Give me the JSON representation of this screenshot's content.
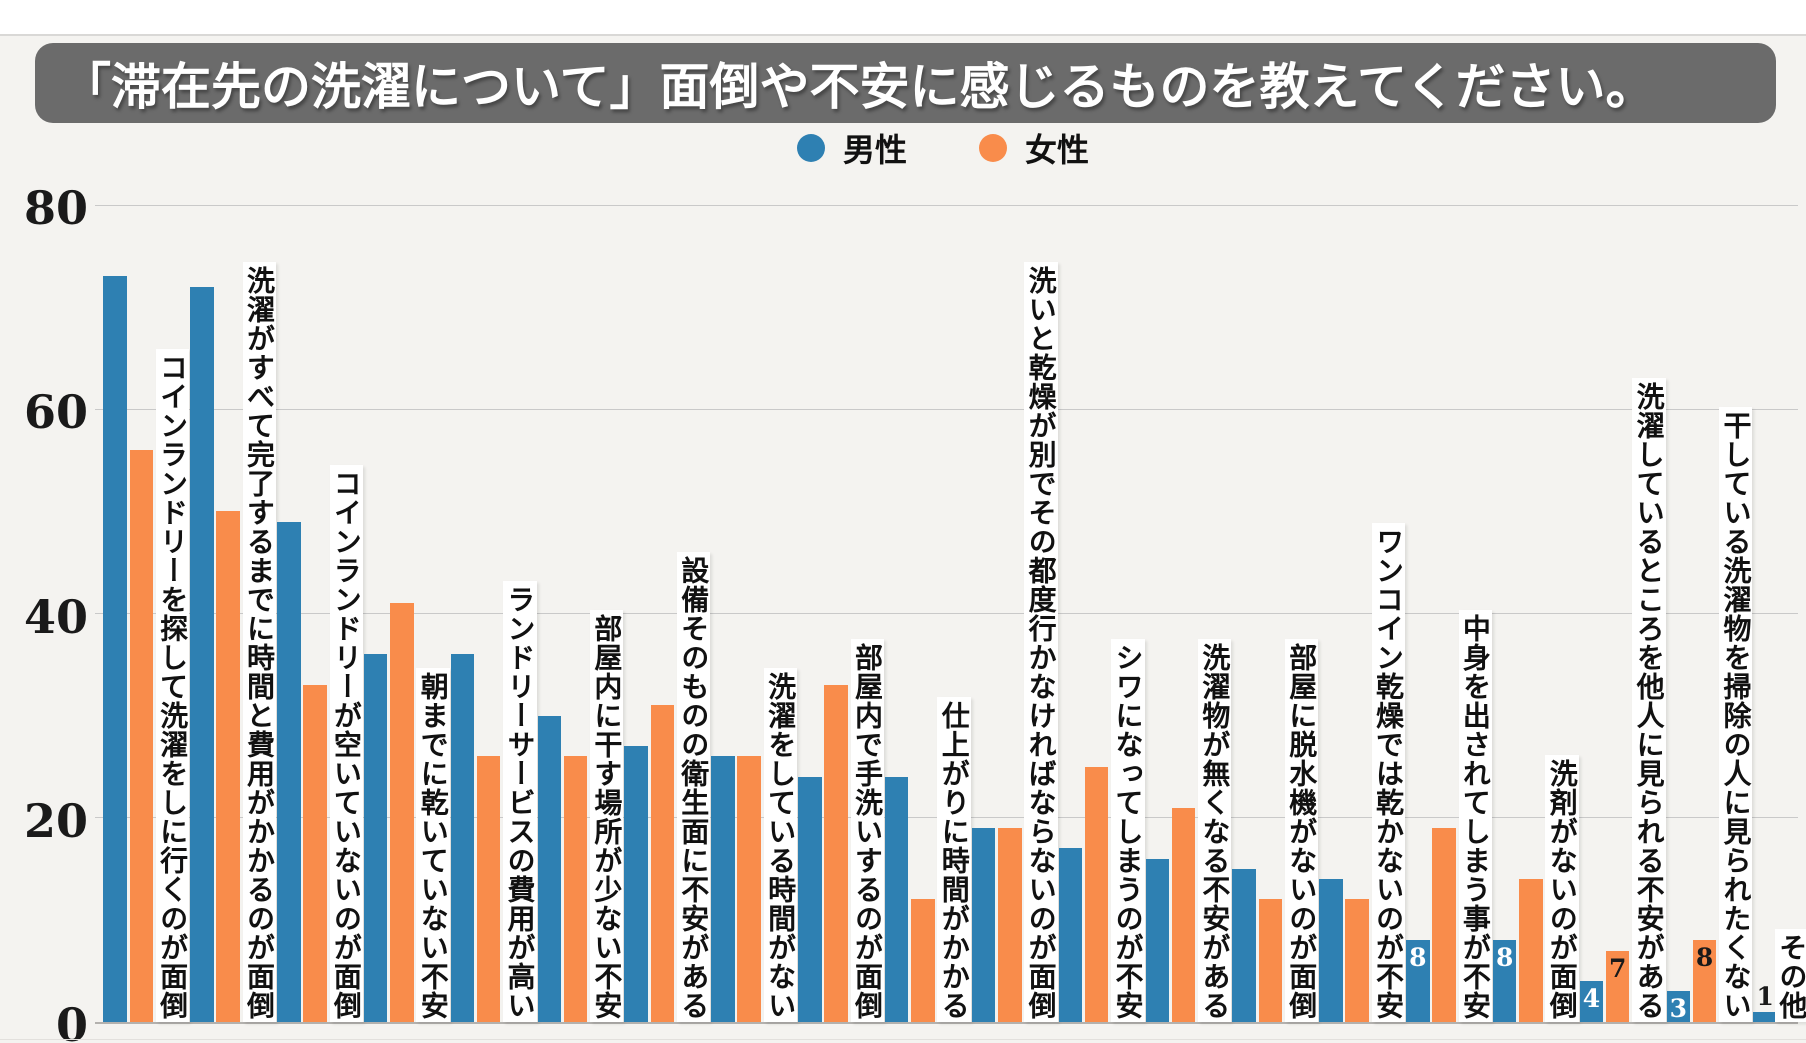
{
  "page": {
    "background": "#f4f3f0",
    "top_band": "#ffffff"
  },
  "title": {
    "text": "「滞在先の洗濯について」面倒や不安に感じるものを教えてください。",
    "bar_color": "#6b6b6b",
    "text_color": "#ffffff"
  },
  "legend": {
    "items": [
      {
        "label": "男性",
        "color": "#2e80b2"
      },
      {
        "label": "女性",
        "color": "#f98c4b"
      }
    ]
  },
  "y_axis": {
    "ticks": [
      0,
      20,
      40,
      60,
      80
    ],
    "max": 80
  },
  "colors": {
    "male": "#2e80b2",
    "female": "#f98c4b",
    "gridline": "#c9c9c9",
    "label_on_male": "#ffffff",
    "label_on_female": "#1a1a1a"
  },
  "chart_data": {
    "type": "bar",
    "title": "「滞在先の洗濯について」面倒や不安に感じるものを教えてください。",
    "categories": [
      "コインランドリーを探して洗濯をしに行くのが面倒",
      "洗濯がすべて完了するまでに時間と費用がかかるのが面倒",
      "コインランドリーが空いていないのが面倒",
      "朝までに乾いていない不安",
      "ランドリーサービスの費用が高い",
      "部屋内に干す場所が少ない不安",
      "設備そのものの衛生面に不安がある",
      "洗濯をしている時間がない",
      "部屋内で手洗いするのが面倒",
      "仕上がりに時間がかかる",
      "洗いと乾燥が別でその都度行かなければならないのが面倒",
      "シワになってしまうのが不安",
      "洗濯物が無くなる不安がある",
      "部屋に脱水機がないのが面倒",
      "ワンコイン乾燥では乾かないのが不安",
      "中身を出されてしまう事が不安",
      "洗剤がないのが面倒",
      "洗濯しているところを他人に見られる不安がある",
      "干している洗濯物を掃除の人に見られたくない",
      "その他"
    ],
    "series": [
      {
        "name": "男性",
        "color": "#2e80b2",
        "values": [
          73,
          72,
          49,
          36,
          36,
          30,
          27,
          26,
          24,
          24,
          19,
          17,
          16,
          15,
          14,
          8,
          8,
          4,
          3,
          1
        ]
      },
      {
        "name": "女性",
        "color": "#f98c4b",
        "values": [
          56,
          50,
          33,
          41,
          26,
          26,
          31,
          26,
          33,
          12,
          19,
          25,
          21,
          12,
          12,
          19,
          14,
          7,
          8,
          0
        ]
      }
    ],
    "ylim": [
      0,
      80
    ],
    "grid": true,
    "legend_position": "top",
    "value_labels": "single-digit bars only (8, 8, 4, 7, 3, 8, 1)"
  }
}
